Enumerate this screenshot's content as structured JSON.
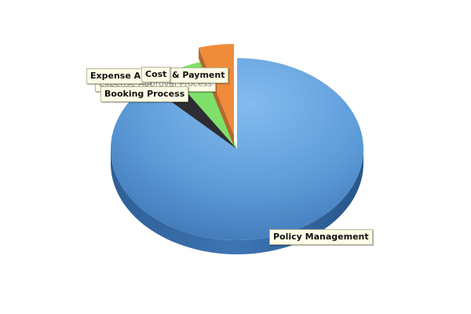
{
  "chart_data": {
    "type": "pie",
    "style": "3d",
    "legend": "none",
    "slices": [
      {
        "label": "Policy Management",
        "value": 87.5,
        "color": "#4a88cc"
      },
      {
        "label": "Booking Process",
        "value": 3.5,
        "color": "#2d2d33"
      },
      {
        "label": "Expense Approval Process",
        "value": 4.5,
        "color": "#7ee06a"
      },
      {
        "label": "Cost & Payment",
        "value": 4.5,
        "color": "#ef8c3c",
        "exploded": true
      }
    ],
    "visible_label_text": {
      "expense_approval": "Expense Ap",
      "expense_approval_hidden": "Expense Approval Process",
      "cost_payment_a": "Cost",
      "cost_payment_b": "& Payment",
      "booking": "Booking Process",
      "policy": "Policy Management"
    }
  }
}
